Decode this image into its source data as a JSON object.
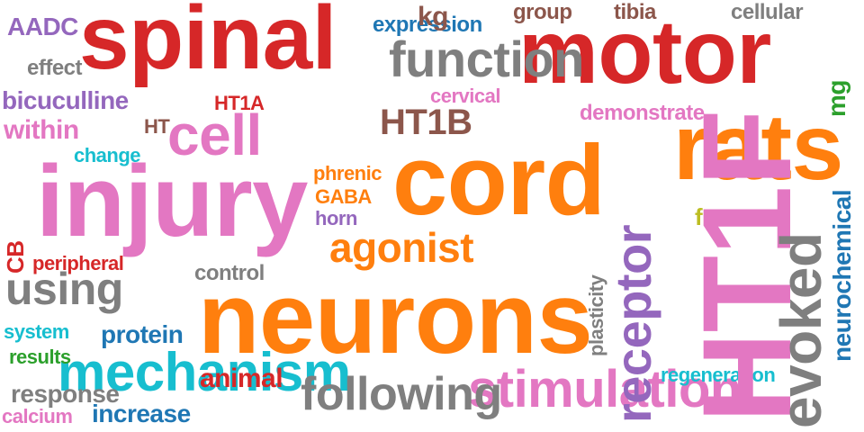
{
  "palette": {
    "red": "#d62728",
    "orange": "#ff7f0e",
    "pink": "#e377c2",
    "gray": "#7f7f7f",
    "cyan": "#17becf",
    "blue": "#1f77b4",
    "purple": "#9467bd",
    "brown": "#8c564b",
    "green": "#2ca02c",
    "olive": "#bcbd22"
  },
  "words": [
    {
      "text": "spinal",
      "color": "red"
    },
    {
      "text": "motor",
      "color": "red"
    },
    {
      "text": "injury",
      "color": "pink"
    },
    {
      "text": "cord",
      "color": "orange"
    },
    {
      "text": "neurons",
      "color": "orange"
    },
    {
      "text": "rats",
      "color": "orange"
    },
    {
      "text": "cell",
      "color": "pink"
    },
    {
      "text": "function",
      "color": "gray"
    },
    {
      "text": "using",
      "color": "gray"
    },
    {
      "text": "agonist",
      "color": "orange"
    },
    {
      "text": "mechanism",
      "color": "cyan"
    },
    {
      "text": "stimulation",
      "color": "pink"
    },
    {
      "text": "following",
      "color": "gray"
    },
    {
      "text": "HT1B",
      "color": "brown"
    },
    {
      "text": "AADC",
      "color": "purple"
    },
    {
      "text": "effect",
      "color": "gray"
    },
    {
      "text": "bicuculline",
      "color": "purple"
    },
    {
      "text": "within",
      "color": "pink"
    },
    {
      "text": "HT",
      "color": "brown"
    },
    {
      "text": "change",
      "color": "cyan"
    },
    {
      "text": "expression",
      "color": "blue"
    },
    {
      "text": "kg",
      "color": "brown"
    },
    {
      "text": "group",
      "color": "brown"
    },
    {
      "text": "tibia",
      "color": "brown"
    },
    {
      "text": "cellular",
      "color": "gray"
    },
    {
      "text": "cervical",
      "color": "pink"
    },
    {
      "text": "HT1A",
      "color": "red"
    },
    {
      "text": "demonstrate",
      "color": "pink"
    },
    {
      "text": "phrenic",
      "color": "orange"
    },
    {
      "text": "GABA",
      "color": "orange"
    },
    {
      "text": "horn",
      "color": "purple"
    },
    {
      "text": "fracture",
      "color": "olive"
    },
    {
      "text": "peripheral",
      "color": "red"
    },
    {
      "text": "control",
      "color": "gray"
    },
    {
      "text": "system",
      "color": "cyan"
    },
    {
      "text": "protein",
      "color": "blue"
    },
    {
      "text": "results",
      "color": "green"
    },
    {
      "text": "animal",
      "color": "red"
    },
    {
      "text": "regeneration",
      "color": "cyan"
    },
    {
      "text": "response",
      "color": "gray"
    },
    {
      "text": "calcium",
      "color": "pink"
    },
    {
      "text": "increase",
      "color": "blue"
    },
    {
      "text": "HT1F",
      "color": "pink"
    },
    {
      "text": "receptor",
      "color": "purple"
    },
    {
      "text": "evoked",
      "color": "gray"
    },
    {
      "text": "mg",
      "color": "green"
    },
    {
      "text": "CB",
      "color": "red"
    },
    {
      "text": "plasticity",
      "color": "gray"
    },
    {
      "text": "neurochemical",
      "color": "blue"
    }
  ]
}
